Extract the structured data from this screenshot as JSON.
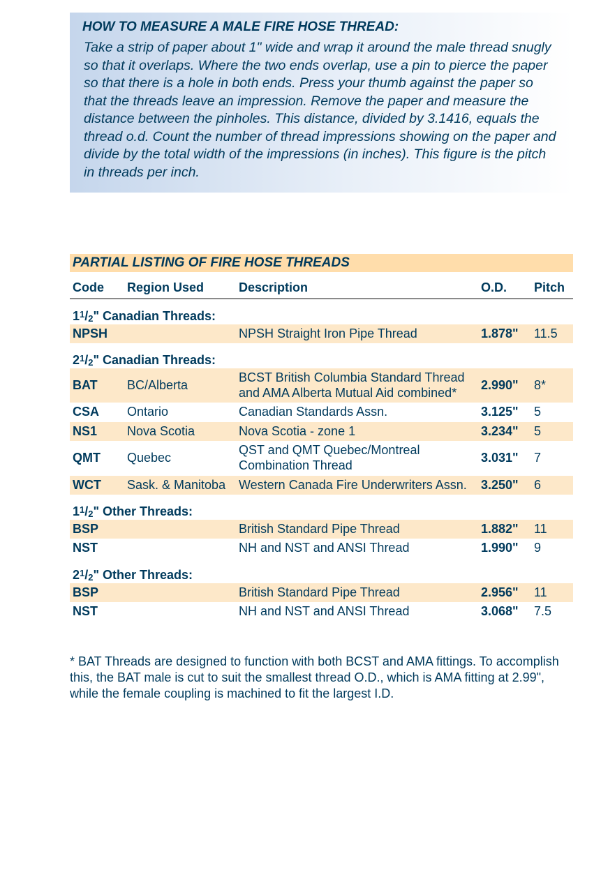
{
  "colors": {
    "text": "#003a5c",
    "info_gradient_start": "#c5d6ec",
    "info_gradient_end": "#ffffff",
    "section_bg": "#ffddab",
    "row_shade": "#fde8c9",
    "header_rule": "#8a8a8a"
  },
  "info_box": {
    "heading": "HOW TO MEASURE A MALE FIRE HOSE THREAD:",
    "body": "Take a strip of paper about 1\" wide and wrap it around the male thread snugly so that it overlaps. Where the two ends overlap, use a pin to pierce the paper so that there is a hole in both ends. Press your thumb against the paper so that the threads leave an impression. Remove the paper and measure the distance between the pinholes. This distance, divided by 3.1416, equals the thread o.d. Count the number of thread impressions showing on the paper and divide by the total width of the impressions (in inches). This figure is the pitch in threads per inch."
  },
  "section_title": "PARTIAL LISTING OF FIRE HOSE THREADS",
  "table": {
    "columns": [
      "Code",
      "Region Used",
      "Description",
      "O.D.",
      "Pitch"
    ],
    "groups": [
      {
        "heading": "1½\" Canadian Threads:",
        "rows": [
          {
            "code": "NPSH",
            "region": "",
            "desc": "NPSH Straight Iron Pipe Thread",
            "od": "1.878\"",
            "pitch": "11.5",
            "shaded": true
          }
        ]
      },
      {
        "heading": "2½\" Canadian Threads:",
        "rows": [
          {
            "code": "BAT",
            "region": "BC/Alberta",
            "desc": "BCST British Columbia Standard Thread and AMA Alberta Mutual Aid combined*",
            "od": "2.990\"",
            "pitch": "8*",
            "shaded": true
          },
          {
            "code": "CSA",
            "region": "Ontario",
            "desc": "Canadian Standards Assn.",
            "od": "3.125\"",
            "pitch": "5",
            "shaded": false
          },
          {
            "code": "NS1",
            "region": "Nova Scotia",
            "desc": "Nova Scotia - zone 1",
            "od": "3.234\"",
            "pitch": "5",
            "shaded": true
          },
          {
            "code": "QMT",
            "region": "Quebec",
            "desc": "QST and QMT Quebec/Montreal Combination Thread",
            "od": "3.031\"",
            "pitch": "7",
            "shaded": false
          },
          {
            "code": "WCT",
            "region": "Sask. & Manitoba",
            "desc": "Western Canada Fire Underwriters Assn.",
            "od": "3.250\"",
            "pitch": "6",
            "shaded": true
          }
        ]
      },
      {
        "heading": "1½\" Other Threads:",
        "rows": [
          {
            "code": "BSP",
            "region": "",
            "desc": "British Standard Pipe Thread",
            "od": "1.882\"",
            "pitch": "11",
            "shaded": true
          },
          {
            "code": "NST",
            "region": "",
            "desc": "NH and NST and ANSI Thread",
            "od": "1.990\"",
            "pitch": "9",
            "shaded": false
          }
        ]
      },
      {
        "heading": "2½\" Other Threads:",
        "rows": [
          {
            "code": "BSP",
            "region": "",
            "desc": "British Standard Pipe Thread",
            "od": "2.956\"",
            "pitch": "11",
            "shaded": true
          },
          {
            "code": "NST",
            "region": "",
            "desc": "NH and NST and ANSI Thread",
            "od": "3.068\"",
            "pitch": "7.5",
            "shaded": false
          }
        ]
      }
    ]
  },
  "footnote": "* BAT Threads are designed to function with both BCST and AMA fittings. To accomplish this, the BAT male is cut to suit the smallest thread O.D., which is AMA fitting at 2.99\", while the female coupling is machined to fit the largest I.D."
}
